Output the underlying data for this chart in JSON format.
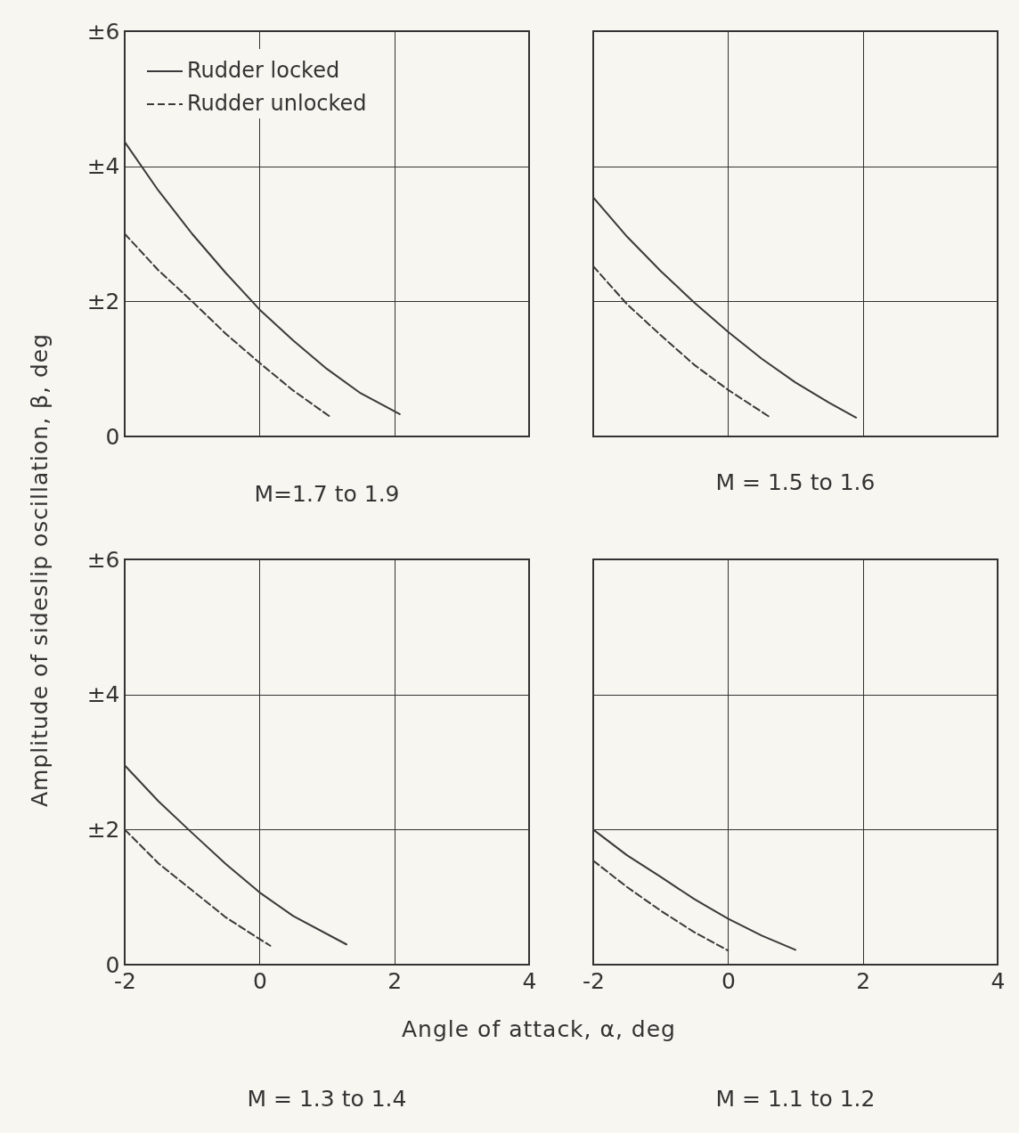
{
  "chart_data": [
    {
      "type": "line",
      "title": "M=1.7  to 1.9",
      "ylabel": "Amplitude of sideslip oscillation, β, deg",
      "xlim": [
        -2,
        4
      ],
      "ylim": [
        0,
        6
      ],
      "xticks": [
        -2,
        0,
        2,
        4
      ],
      "yticks": [
        0,
        {
          "value": 2,
          "label": "±2"
        },
        {
          "value": 4,
          "label": "±4"
        },
        {
          "value": 6,
          "label": "±6"
        }
      ],
      "grid": true,
      "legend": "top",
      "tick_labels": "y",
      "series": [
        {
          "name": "Rudder locked",
          "color": "#3a3a3a",
          "line_style": "solid",
          "x": [
            -2,
            -1.5,
            -1,
            -0.5,
            0,
            0.5,
            1,
            1.5,
            2.08
          ],
          "values": [
            4.36,
            3.64,
            3.0,
            2.42,
            1.88,
            1.42,
            1.0,
            0.64,
            0.33
          ]
        },
        {
          "name": "Rudder unlocked",
          "color": "#3a3a3a",
          "line_style": "dashed",
          "x": [
            -2,
            -1.5,
            -1,
            -0.5,
            0,
            0.5,
            1.05
          ],
          "values": [
            3.0,
            2.46,
            2.0,
            1.52,
            1.09,
            0.68,
            0.29
          ]
        }
      ]
    },
    {
      "type": "line",
      "title": "M = 1.5  to 1.6",
      "xlim": [
        -2,
        4
      ],
      "ylim": [
        0,
        6
      ],
      "xticks": [
        -2,
        0,
        2,
        4
      ],
      "yticks": [
        0,
        2,
        4,
        6
      ],
      "grid": true,
      "tick_labels": false,
      "series": [
        {
          "color": "#3a3a3a",
          "line_style": "solid",
          "x": [
            -2,
            -1.5,
            -1,
            -0.5,
            0,
            0.5,
            1,
            1.5,
            1.9
          ],
          "values": [
            3.54,
            2.96,
            2.45,
            1.98,
            1.55,
            1.15,
            0.8,
            0.5,
            0.28
          ]
        },
        {
          "color": "#3a3a3a",
          "line_style": "dashed",
          "x": [
            -2,
            -1.5,
            -1,
            -0.5,
            0,
            0.63
          ],
          "values": [
            2.52,
            1.96,
            1.5,
            1.06,
            0.69,
            0.28
          ]
        }
      ]
    },
    {
      "type": "line",
      "title": "M = 1.3  to 1.4",
      "xlabel": "Angle of attack, α, deg",
      "xlim": [
        -2,
        4
      ],
      "ylim": [
        0,
        6
      ],
      "xticks": [
        -2,
        0,
        2,
        4
      ],
      "yticks": [
        0,
        {
          "value": 2,
          "label": "±2"
        },
        {
          "value": 4,
          "label": "±4"
        },
        {
          "value": 6,
          "label": "±6"
        }
      ],
      "grid": true,
      "series": [
        {
          "color": "#3a3a3a",
          "line_style": "solid",
          "x": [
            -2,
            -1.5,
            -1,
            -0.5,
            0,
            0.5,
            1.29
          ],
          "values": [
            2.95,
            2.42,
            1.95,
            1.49,
            1.07,
            0.72,
            0.3
          ]
        },
        {
          "color": "#3a3a3a",
          "line_style": "dashed",
          "x": [
            -2,
            -1.5,
            -1,
            -0.5,
            0,
            0.16
          ],
          "values": [
            2.0,
            1.5,
            1.1,
            0.7,
            0.38,
            0.28
          ]
        }
      ]
    },
    {
      "type": "line",
      "title": "M = 1.1  to 1.2",
      "xlim": [
        -2,
        4
      ],
      "ylim": [
        0,
        6
      ],
      "xticks": [
        -2,
        0,
        2,
        4
      ],
      "yticks": [
        0,
        2,
        4,
        6
      ],
      "grid": true,
      "tick_labels": "x",
      "series": [
        {
          "color": "#3a3a3a",
          "line_style": "solid",
          "x": [
            -2,
            -1.5,
            -1,
            -0.5,
            0,
            0.5,
            1.0
          ],
          "values": [
            2.0,
            1.62,
            1.3,
            0.97,
            0.68,
            0.43,
            0.22
          ]
        },
        {
          "color": "#3a3a3a",
          "line_style": "dashed",
          "x": [
            -2,
            -1.5,
            -1,
            -0.5,
            0
          ],
          "values": [
            1.54,
            1.15,
            0.8,
            0.48,
            0.21
          ]
        }
      ]
    }
  ]
}
